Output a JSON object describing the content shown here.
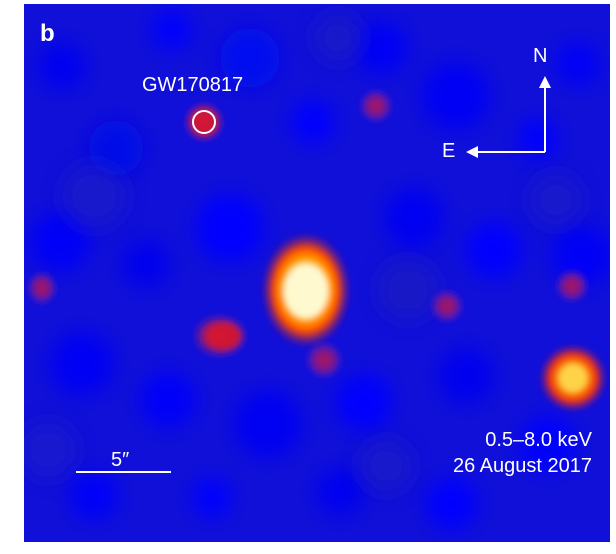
{
  "panel": {
    "letter": "b",
    "source_label": "GW170817",
    "compass": {
      "north": "N",
      "east": "E"
    },
    "scale_bar_label": "5″",
    "energy_band": "0.5–8.0 keV",
    "observation_date": "26 August 2017",
    "colors": {
      "background": "#1010d8",
      "text": "#ffffff",
      "hot_core": "#fff8c0",
      "hot_mid": "#ffd400",
      "warm": "#ff5a00",
      "cool_red": "#c01020"
    },
    "icons": [
      "north-arrow-icon",
      "east-arrow-icon",
      "source-circle-icon"
    ]
  }
}
